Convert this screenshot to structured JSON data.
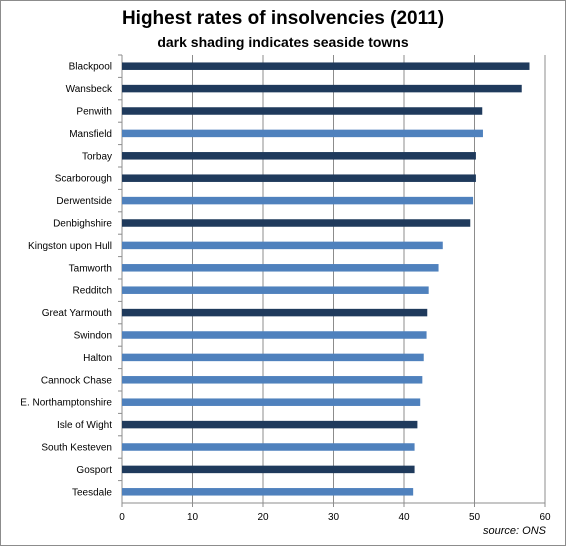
{
  "chart_data": {
    "type": "bar",
    "orientation": "horizontal",
    "title": "Highest rates of insolvencies  (2011)",
    "subtitle": "dark shading indicates seaside towns",
    "source": "source: ONS",
    "categories": [
      "Blackpool",
      "Wansbeck",
      "Penwith",
      "Mansfield",
      "Torbay",
      "Scarborough",
      "Derwentside",
      "Denbighshire",
      "Kingston upon Hull",
      "Tamworth",
      "Redditch",
      "Great Yarmouth",
      "Swindon",
      "Halton",
      "Cannock Chase",
      "E. Northamptonshire",
      "Isle of Wight",
      "South Kesteven",
      "Gosport",
      "Teesdale"
    ],
    "values": [
      57.8,
      56.7,
      51.1,
      51.2,
      50.2,
      50.2,
      49.8,
      49.4,
      45.5,
      44.9,
      43.5,
      43.3,
      43.2,
      42.8,
      42.6,
      42.3,
      41.9,
      41.5,
      41.5,
      41.3
    ],
    "seaside": [
      true,
      true,
      true,
      false,
      true,
      true,
      false,
      true,
      false,
      false,
      false,
      true,
      false,
      false,
      false,
      false,
      true,
      false,
      true,
      false
    ],
    "colors": {
      "seaside": "#1f3a5c",
      "other": "#4f81bd"
    },
    "xlim": [
      0,
      60
    ],
    "xticks": [
      0,
      10,
      20,
      30,
      40,
      50,
      60
    ],
    "grid": "vertical",
    "legend": "none"
  }
}
